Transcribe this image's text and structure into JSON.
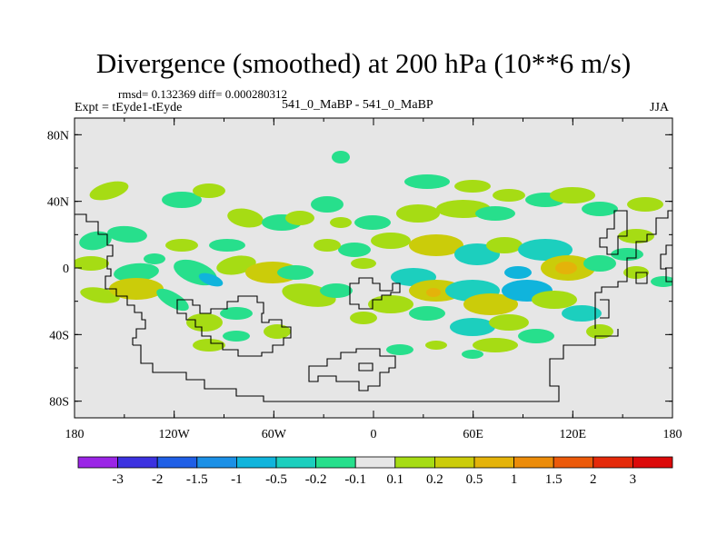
{
  "title": "Divergence (smoothed) at 200 hPa (10**6 m/s)",
  "stats": "rmsd= 0.132369 diff= 0.000280312",
  "experiment": "Expt = tEyde1-tEyde",
  "case_label": "541_0_MaBP - 541_0_MaBP",
  "season": "JJA",
  "map": {
    "lon_ticks": [
      "180",
      "120W",
      "60W",
      "0",
      "60E",
      "120E",
      "180"
    ],
    "lat_ticks": [
      "80N",
      "40N",
      "0",
      "40S",
      "80S"
    ],
    "background_color": "#e6e6e6",
    "coast_color": "#000000"
  },
  "colorbar": {
    "levels": [
      "-3",
      "-2",
      "-1.5",
      "-1",
      "-0.5",
      "-0.2",
      "-0.1",
      "0.1",
      "0.2",
      "0.5",
      "1",
      "1.5",
      "2",
      "3"
    ],
    "colors": [
      "#9b25e6",
      "#3c32e0",
      "#1f5fe6",
      "#1b90e6",
      "#10b4dc",
      "#1ccfbe",
      "#27df8c",
      "#e6e6e6",
      "#a6dc14",
      "#cbcc0a",
      "#e4b30a",
      "#ec8c0a",
      "#ec5a0a",
      "#e52a0a",
      "#dc0a0a"
    ]
  },
  "field_colors": {
    "neg_weak": "#27df8c",
    "neg_mid": "#1ccfbe",
    "neg_strong": "#10b4dc",
    "pos_weak": "#a6dc14",
    "pos_mid": "#cbcc0a",
    "pos_strong": "#e4b30a"
  }
}
